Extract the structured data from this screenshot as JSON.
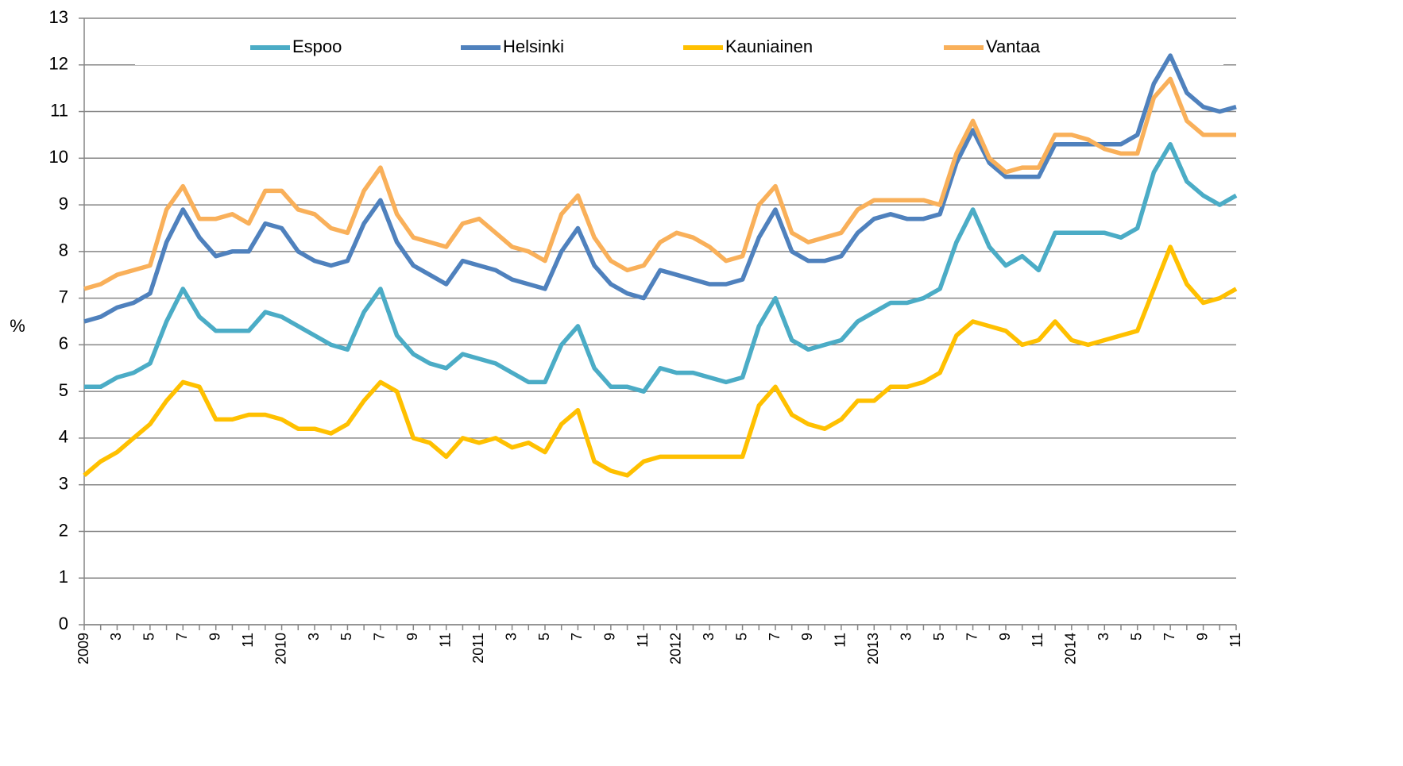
{
  "chart_data": {
    "type": "line",
    "y_label": "%",
    "categories": [
      "2009",
      null,
      "3",
      null,
      "5",
      null,
      "7",
      null,
      "9",
      null,
      "11",
      null,
      "2010",
      null,
      "3",
      null,
      "5",
      null,
      "7",
      null,
      "9",
      null,
      "11",
      null,
      "2011",
      null,
      "3",
      null,
      "5",
      null,
      "7",
      null,
      "9",
      null,
      "11",
      null,
      "2012",
      null,
      "3",
      null,
      "5",
      null,
      "7",
      null,
      "9",
      null,
      "11",
      null,
      "2013",
      null,
      "3",
      null,
      "5",
      null,
      "7",
      null,
      "9",
      null,
      "11",
      null,
      "2014",
      null,
      "3",
      null,
      "5",
      null,
      "7",
      null,
      "9",
      null,
      "11"
    ],
    "series": [
      {
        "name": "Espoo",
        "color": "#4bacc6",
        "values": [
          5.1,
          5.1,
          5.3,
          5.4,
          5.6,
          6.5,
          7.2,
          6.6,
          6.3,
          6.3,
          6.3,
          6.7,
          6.6,
          6.4,
          6.2,
          6.0,
          5.9,
          6.7,
          7.2,
          6.2,
          5.8,
          5.6,
          5.5,
          5.8,
          5.7,
          5.6,
          5.4,
          5.2,
          5.2,
          6.0,
          6.4,
          5.5,
          5.1,
          5.1,
          5.0,
          5.5,
          5.4,
          5.4,
          5.3,
          5.2,
          5.3,
          6.4,
          7.0,
          6.1,
          5.9,
          6.0,
          6.1,
          6.5,
          6.7,
          6.9,
          6.9,
          7.0,
          7.2,
          8.2,
          8.9,
          8.1,
          7.7,
          7.9,
          7.6,
          8.4,
          8.4,
          8.4,
          8.4,
          8.3,
          8.5,
          9.7,
          10.3,
          9.5,
          9.2,
          9.0,
          9.2
        ]
      },
      {
        "name": "Helsinki",
        "color": "#4f81bd",
        "values": [
          6.5,
          6.6,
          6.8,
          6.9,
          7.1,
          8.2,
          8.9,
          8.3,
          7.9,
          8.0,
          8.0,
          8.6,
          8.5,
          8.0,
          7.8,
          7.7,
          7.8,
          8.6,
          9.1,
          8.2,
          7.7,
          7.5,
          7.3,
          7.8,
          7.7,
          7.6,
          7.4,
          7.3,
          7.2,
          8.0,
          8.5,
          7.7,
          7.3,
          7.1,
          7.0,
          7.6,
          7.5,
          7.4,
          7.3,
          7.3,
          7.4,
          8.3,
          8.9,
          8.0,
          7.8,
          7.8,
          7.9,
          8.4,
          8.7,
          8.8,
          8.7,
          8.7,
          8.8,
          9.9,
          10.6,
          9.9,
          9.6,
          9.6,
          9.6,
          10.3,
          10.3,
          10.3,
          10.3,
          10.3,
          10.5,
          11.6,
          12.2,
          11.4,
          11.1,
          11.0,
          11.1
        ]
      },
      {
        "name": "Kauniainen",
        "color": "#ffc000",
        "values": [
          3.2,
          3.5,
          3.7,
          4.0,
          4.3,
          4.8,
          5.2,
          5.1,
          4.4,
          4.4,
          4.5,
          4.5,
          4.4,
          4.2,
          4.2,
          4.1,
          4.3,
          4.8,
          5.2,
          5.0,
          4.0,
          3.9,
          3.6,
          4.0,
          3.9,
          4.0,
          3.8,
          3.9,
          3.7,
          4.3,
          4.6,
          3.5,
          3.3,
          3.2,
          3.5,
          3.6,
          3.6,
          3.6,
          3.6,
          3.6,
          3.6,
          4.7,
          5.1,
          4.5,
          4.3,
          4.2,
          4.4,
          4.8,
          4.8,
          5.1,
          5.1,
          5.2,
          5.4,
          6.2,
          6.5,
          6.4,
          6.3,
          6.0,
          6.1,
          6.5,
          6.1,
          6.0,
          6.1,
          6.2,
          6.3,
          7.2,
          8.1,
          7.3,
          6.9,
          7.0,
          7.2
        ]
      },
      {
        "name": "Vantaa",
        "color": "#f9b05a",
        "values": [
          7.2,
          7.3,
          7.5,
          7.6,
          7.7,
          8.9,
          9.4,
          8.7,
          8.7,
          8.8,
          8.6,
          9.3,
          9.3,
          8.9,
          8.8,
          8.5,
          8.4,
          9.3,
          9.8,
          8.8,
          8.3,
          8.2,
          8.1,
          8.6,
          8.7,
          8.4,
          8.1,
          8.0,
          7.8,
          8.8,
          9.2,
          8.3,
          7.8,
          7.6,
          7.7,
          8.2,
          8.4,
          8.3,
          8.1,
          7.8,
          7.9,
          9.0,
          9.4,
          8.4,
          8.2,
          8.3,
          8.4,
          8.9,
          9.1,
          9.1,
          9.1,
          9.1,
          9.0,
          10.1,
          10.8,
          10.0,
          9.7,
          9.8,
          9.8,
          10.5,
          10.5,
          10.4,
          10.2,
          10.1,
          10.1,
          11.3,
          11.7,
          10.8,
          10.5,
          10.5,
          10.5
        ]
      }
    ],
    "ylim": [
      0,
      13
    ],
    "yticks": [
      0,
      1,
      2,
      3,
      4,
      5,
      6,
      7,
      8,
      9,
      10,
      11,
      12,
      13
    ],
    "grid": true,
    "legend": "top"
  }
}
